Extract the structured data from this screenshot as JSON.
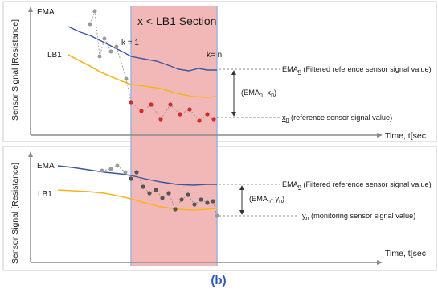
{
  "section_label": "x < LB1 Section",
  "k_start": "k = 1",
  "k_end": "k= n",
  "top": {
    "ema_label": "EMA",
    "lb1_label": "LB1",
    "y_axis_label": "Sensor Signal [Resistance]",
    "x_axis_label": "Time, t[sec",
    "ema_annot": {
      "prefix": "EMA",
      "sub": "n",
      "suffix": " (Filtered reference sensor signal value)"
    },
    "diff_annot": {
      "open": "(EMA",
      "sub1": "n",
      "mid": "- x",
      "sub2": "n",
      "close": ")"
    },
    "x_annot": {
      "prefix": "x",
      "sub": "n",
      "suffix": " (reference sensor signal value)"
    }
  },
  "bottom": {
    "ema_label": "EMA",
    "lb1_label": "LB1",
    "y_axis_label": "Sensor Signal [Resistance]",
    "x_axis_label": "Time, t[sec",
    "ema_annot": {
      "prefix": "EMA",
      "sub": "n",
      "suffix": " (Filtered reference sensor signal value)"
    },
    "diff_annot": {
      "open": "(EMA",
      "sub1": "n",
      "mid": "- y",
      "sub2": "n",
      "close": ")"
    },
    "y_annot": {
      "prefix": "y",
      "sub": "n",
      "suffix": " (monitoring sensor signal value)"
    }
  },
  "caption": "(b)",
  "colors": {
    "ema": "#3a55a0",
    "lb1": "#f5b51c",
    "section_fill": "#f2b8b8",
    "section_edge": "#9fb4dc",
    "ref_points": "#d42a2a",
    "mon_points": "#555555",
    "caption": "#2f55b8"
  }
}
